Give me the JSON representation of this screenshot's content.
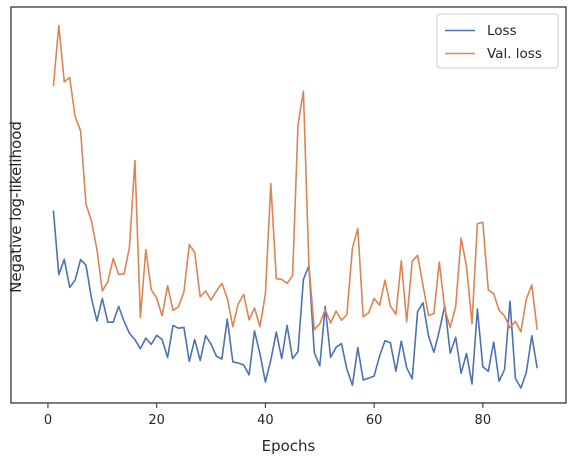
{
  "chart_data": {
    "type": "line",
    "title": "",
    "xlabel": "Epochs",
    "ylabel": "Negative log-likelihood",
    "xlim": [
      -6.8,
      95.3
    ],
    "ylim": [
      0,
      1
    ],
    "xticks": [
      0,
      20,
      40,
      60,
      80
    ],
    "xtick_labels": [
      "0",
      "20",
      "40",
      "60",
      "80"
    ],
    "yticks_shown": false,
    "grid": false,
    "legend_position": "top-right",
    "series": [
      {
        "name": "Loss",
        "color": "#4c72b0",
        "x": [
          1,
          2,
          3,
          4,
          5,
          6,
          7,
          8,
          9,
          10,
          11,
          12,
          13,
          14,
          15,
          16,
          17,
          18,
          19,
          20,
          21,
          22,
          23,
          24,
          25,
          26,
          27,
          28,
          29,
          30,
          31,
          32,
          33,
          34,
          35,
          36,
          37,
          38,
          39,
          40,
          41,
          42,
          43,
          44,
          45,
          46,
          47,
          48,
          49,
          50,
          51,
          52,
          53,
          54,
          55,
          56,
          57,
          58,
          59,
          60,
          61,
          62,
          63,
          64,
          65,
          66,
          67,
          68,
          69,
          70,
          71,
          72,
          73,
          74,
          75,
          76,
          77,
          78,
          79,
          80,
          81,
          82,
          83,
          84,
          85,
          86,
          87,
          88,
          89,
          90
        ],
        "values": [
          0.486,
          0.324,
          0.363,
          0.292,
          0.31,
          0.362,
          0.348,
          0.264,
          0.207,
          0.264,
          0.204,
          0.204,
          0.244,
          0.206,
          0.176,
          0.16,
          0.137,
          0.164,
          0.148,
          0.171,
          0.16,
          0.115,
          0.196,
          0.189,
          0.191,
          0.105,
          0.16,
          0.107,
          0.17,
          0.149,
          0.118,
          0.111,
          0.212,
          0.104,
          0.101,
          0.096,
          0.071,
          0.182,
          0.124,
          0.053,
          0.108,
          0.179,
          0.112,
          0.196,
          0.112,
          0.13,
          0.312,
          0.346,
          0.127,
          0.094,
          0.244,
          0.115,
          0.141,
          0.15,
          0.085,
          0.045,
          0.14,
          0.058,
          0.063,
          0.068,
          0.119,
          0.157,
          0.152,
          0.08,
          0.156,
          0.089,
          0.061,
          0.231,
          0.253,
          0.169,
          0.128,
          0.182,
          0.246,
          0.126,
          0.166,
          0.075,
          0.125,
          0.048,
          0.237,
          0.092,
          0.08,
          0.154,
          0.055,
          0.085,
          0.257,
          0.062,
          0.038,
          0.077,
          0.17,
          0.088
        ]
      },
      {
        "name": "Val. loss",
        "color": "#dd8452",
        "x": [
          1,
          2,
          3,
          4,
          5,
          6,
          7,
          8,
          9,
          10,
          11,
          12,
          13,
          14,
          15,
          16,
          17,
          18,
          19,
          20,
          21,
          22,
          23,
          24,
          25,
          26,
          27,
          28,
          29,
          30,
          31,
          32,
          33,
          34,
          35,
          36,
          37,
          38,
          39,
          40,
          41,
          42,
          43,
          44,
          45,
          46,
          47,
          48,
          49,
          50,
          51,
          52,
          53,
          54,
          55,
          56,
          57,
          58,
          59,
          60,
          61,
          62,
          63,
          64,
          65,
          66,
          67,
          68,
          69,
          70,
          71,
          72,
          73,
          74,
          75,
          76,
          77,
          78,
          79,
          80,
          81,
          82,
          83,
          84,
          85,
          86,
          87,
          88,
          89,
          90
        ],
        "values": [
          0.8,
          0.953,
          0.811,
          0.822,
          0.723,
          0.687,
          0.502,
          0.459,
          0.388,
          0.283,
          0.306,
          0.365,
          0.325,
          0.326,
          0.394,
          0.612,
          0.216,
          0.387,
          0.286,
          0.265,
          0.22,
          0.296,
          0.234,
          0.243,
          0.28,
          0.4,
          0.38,
          0.268,
          0.283,
          0.26,
          0.283,
          0.302,
          0.265,
          0.193,
          0.25,
          0.274,
          0.21,
          0.24,
          0.193,
          0.275,
          0.554,
          0.314,
          0.312,
          0.302,
          0.322,
          0.703,
          0.787,
          0.348,
          0.185,
          0.2,
          0.236,
          0.202,
          0.232,
          0.209,
          0.223,
          0.391,
          0.441,
          0.218,
          0.228,
          0.264,
          0.247,
          0.31,
          0.245,
          0.224,
          0.359,
          0.205,
          0.358,
          0.373,
          0.297,
          0.221,
          0.226,
          0.356,
          0.236,
          0.191,
          0.244,
          0.417,
          0.345,
          0.201,
          0.453,
          0.456,
          0.285,
          0.276,
          0.234,
          0.22,
          0.19,
          0.206,
          0.18,
          0.262,
          0.298,
          0.185
        ]
      }
    ]
  }
}
